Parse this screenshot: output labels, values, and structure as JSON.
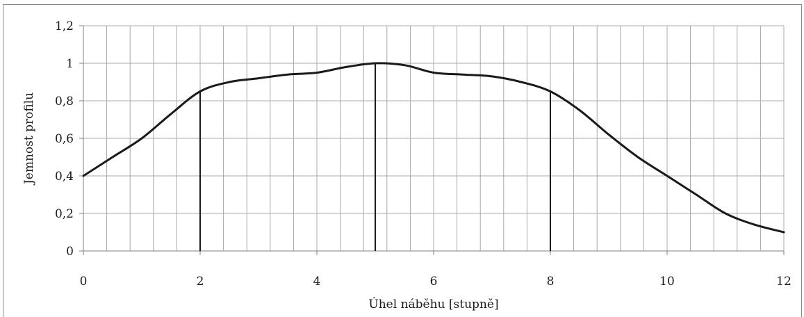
{
  "chart_data": {
    "type": "line",
    "title": "",
    "xlabel": "Úhel náběhu [stupně]",
    "ylabel": "Jemnost profilu",
    "xlim": [
      0,
      12
    ],
    "ylim": [
      0,
      1.2
    ],
    "x_ticks": [
      0,
      2,
      4,
      6,
      8,
      10,
      12
    ],
    "x_tick_labels": [
      "0",
      "2",
      "4",
      "6",
      "8",
      "10",
      "12"
    ],
    "y_ticks": [
      0,
      0.2,
      0.4,
      0.6,
      0.8,
      1.0,
      1.2
    ],
    "y_tick_labels": [
      "0",
      "0,2",
      "0,4",
      "0,6",
      "0,8",
      "1",
      "1,2"
    ],
    "x_minor_step": 0.4,
    "grid": true,
    "legend": "none",
    "series": [
      {
        "color": "#1a1a1a",
        "x": [
          0,
          0.5,
          1,
          1.5,
          2,
          2.5,
          3,
          3.5,
          4,
          4.5,
          5,
          5.5,
          6,
          6.5,
          7,
          7.5,
          8,
          8.5,
          9,
          9.5,
          10,
          10.5,
          11,
          11.5,
          12
        ],
        "y": [
          0.4,
          0.5,
          0.6,
          0.73,
          0.85,
          0.9,
          0.92,
          0.94,
          0.95,
          0.98,
          1.0,
          0.99,
          0.95,
          0.94,
          0.93,
          0.9,
          0.85,
          0.75,
          0.62,
          0.5,
          0.4,
          0.3,
          0.2,
          0.14,
          0.1
        ]
      }
    ],
    "vertical_lines": [
      {
        "x": 2,
        "y": 0.85
      },
      {
        "x": 5,
        "y": 1.0
      },
      {
        "x": 8,
        "y": 0.85
      }
    ]
  }
}
